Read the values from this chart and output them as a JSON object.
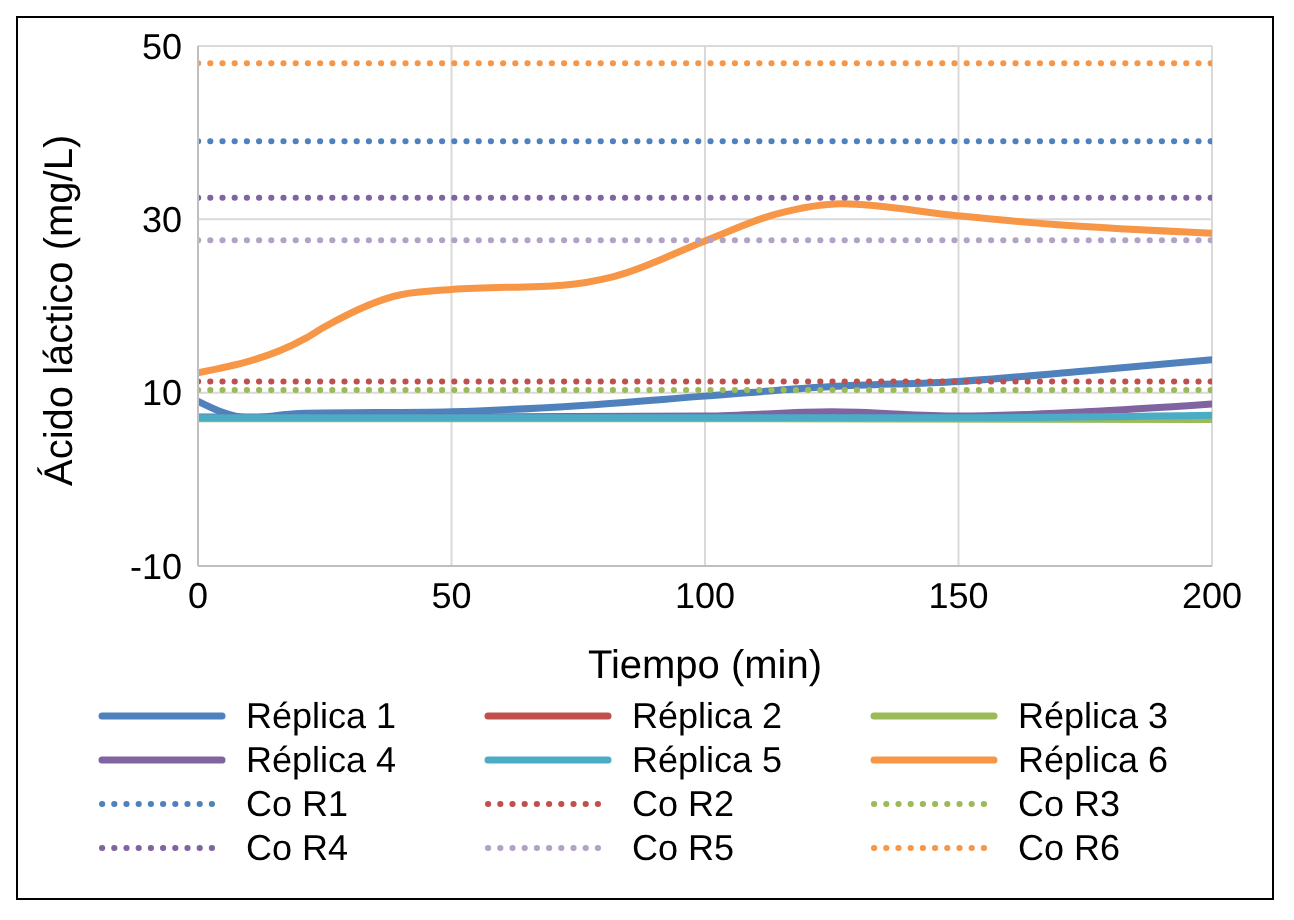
{
  "chart_data": {
    "type": "line",
    "xlabel": "Tiempo (min)",
    "ylabel": "Ácido láctico (mg/L)",
    "xlim": [
      0,
      200
    ],
    "xticks": [
      0,
      50,
      100,
      150,
      200
    ],
    "ylim": [
      -10,
      50
    ],
    "yticks": [
      -10,
      10,
      30,
      50
    ],
    "grid": true,
    "legend": "bottom",
    "marker": "none",
    "series": [
      {
        "name": "Réplica 1",
        "color": "#4f81bd",
        "line_style": "solid",
        "x": [
          0,
          10,
          20,
          50,
          75,
          100,
          125,
          150,
          175,
          200
        ],
        "values": [
          9.0,
          7.1,
          7.6,
          7.8,
          8.5,
          9.6,
          10.7,
          11.3,
          12.5,
          13.8
        ]
      },
      {
        "name": "Réplica 2",
        "color": "#c0504d",
        "line_style": "solid"
      },
      {
        "name": "Réplica 3",
        "color": "#9bbb59",
        "line_style": "solid",
        "x": [
          0,
          100,
          200
        ],
        "values": [
          7.0,
          7.0,
          6.9
        ]
      },
      {
        "name": "Réplica 4",
        "color": "#8064a2",
        "line_style": "solid",
        "x": [
          0,
          50,
          100,
          125,
          150,
          175,
          200
        ],
        "values": [
          7.2,
          7.2,
          7.3,
          7.8,
          7.3,
          7.8,
          8.7
        ]
      },
      {
        "name": "Réplica 5",
        "color": "#4bacc6",
        "line_style": "solid",
        "x": [
          0,
          100,
          150,
          200
        ],
        "values": [
          7.1,
          7.1,
          7.1,
          7.4
        ]
      },
      {
        "name": "Réplica 6",
        "color": "#f79646",
        "line_style": "solid",
        "x": [
          0,
          21,
          25,
          40,
          50,
          72,
          82,
          100,
          114,
          127,
          150,
          169,
          200
        ],
        "values": [
          12.3,
          16.2,
          17.6,
          21.3,
          21.9,
          22.4,
          23.4,
          27.5,
          30.6,
          31.8,
          30.4,
          29.4,
          28.4
        ]
      },
      {
        "name": "Co R1",
        "color": "#4f81bd",
        "line_style": "dotted",
        "x": [
          0,
          200
        ],
        "values": [
          39,
          39
        ]
      },
      {
        "name": "Co R2",
        "color": "#c0504d",
        "line_style": "dotted",
        "x": [
          0,
          200
        ],
        "values": [
          11.3,
          11.3
        ]
      },
      {
        "name": "Co R3",
        "color": "#9bbb59",
        "line_style": "dotted",
        "x": [
          0,
          200
        ],
        "values": [
          10.3,
          10.3
        ]
      },
      {
        "name": "Co R4",
        "color": "#8064a2",
        "line_style": "dotted",
        "x": [
          0,
          200
        ],
        "values": [
          32.5,
          32.5
        ]
      },
      {
        "name": "Co R5",
        "color": "#b3a2c7",
        "line_style": "dotted",
        "x": [
          0,
          200
        ],
        "values": [
          27.6,
          27.6
        ]
      },
      {
        "name": "Co R6",
        "color": "#f79646",
        "line_style": "dotted",
        "x": [
          0,
          200
        ],
        "values": [
          48,
          48
        ]
      }
    ]
  }
}
